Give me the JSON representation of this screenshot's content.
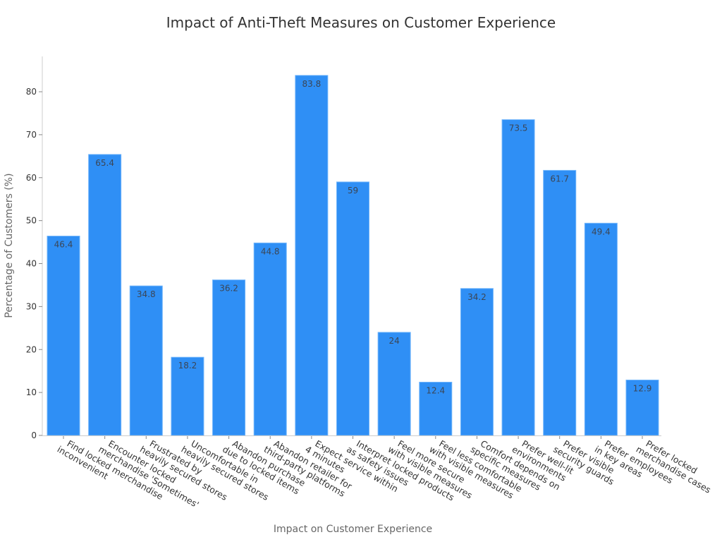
{
  "chart_data": {
    "type": "bar",
    "title": "Impact of Anti-Theft Measures on Customer Experience",
    "xlabel": "Impact on Customer Experience",
    "ylabel": "Percentage of Customers (%)",
    "ylim": [
      0,
      88
    ],
    "yticks": [
      0,
      10,
      20,
      30,
      40,
      50,
      60,
      70,
      80
    ],
    "grid": false,
    "legend": null,
    "bar_color": "#2f8ff5",
    "bar_edge_color": "#6fb4fb",
    "categories": [
      [
        "Find locked merchandise",
        "inconvenient"
      ],
      [
        "Encounter locked",
        "merchandise 'Sometimes'"
      ],
      [
        "Frustrated by",
        "heavily secured stores"
      ],
      [
        "Uncomfortable in",
        "heavily secured stores"
      ],
      [
        "Abandon purchase",
        "due to locked items"
      ],
      [
        "Abandon retailer for",
        "third-party platforms"
      ],
      [
        "Expect service within",
        "4 minutes"
      ],
      [
        "Interpret locked products",
        "as safety issues"
      ],
      [
        "Feel more secure",
        "with visible measures"
      ],
      [
        "Feel less comfortable",
        "with visible measures"
      ],
      [
        "Comfort depends on",
        "specific measures"
      ],
      [
        "Prefer well-lit",
        "environments"
      ],
      [
        "Prefer visible",
        "security guards"
      ],
      [
        "Prefer employees",
        "in key areas"
      ],
      [
        "Prefer locked",
        "merchandise cases"
      ]
    ],
    "values": [
      46.4,
      65.4,
      34.8,
      18.2,
      36.2,
      44.8,
      83.8,
      59,
      24,
      12.4,
      34.2,
      73.5,
      61.7,
      49.4,
      12.9
    ],
    "value_labels": [
      "46.4",
      "65.4",
      "34.8",
      "18.2",
      "36.2",
      "44.8",
      "83.8",
      "59",
      "24",
      "12.4",
      "34.2",
      "73.5",
      "61.7",
      "49.4",
      "12.9"
    ]
  }
}
